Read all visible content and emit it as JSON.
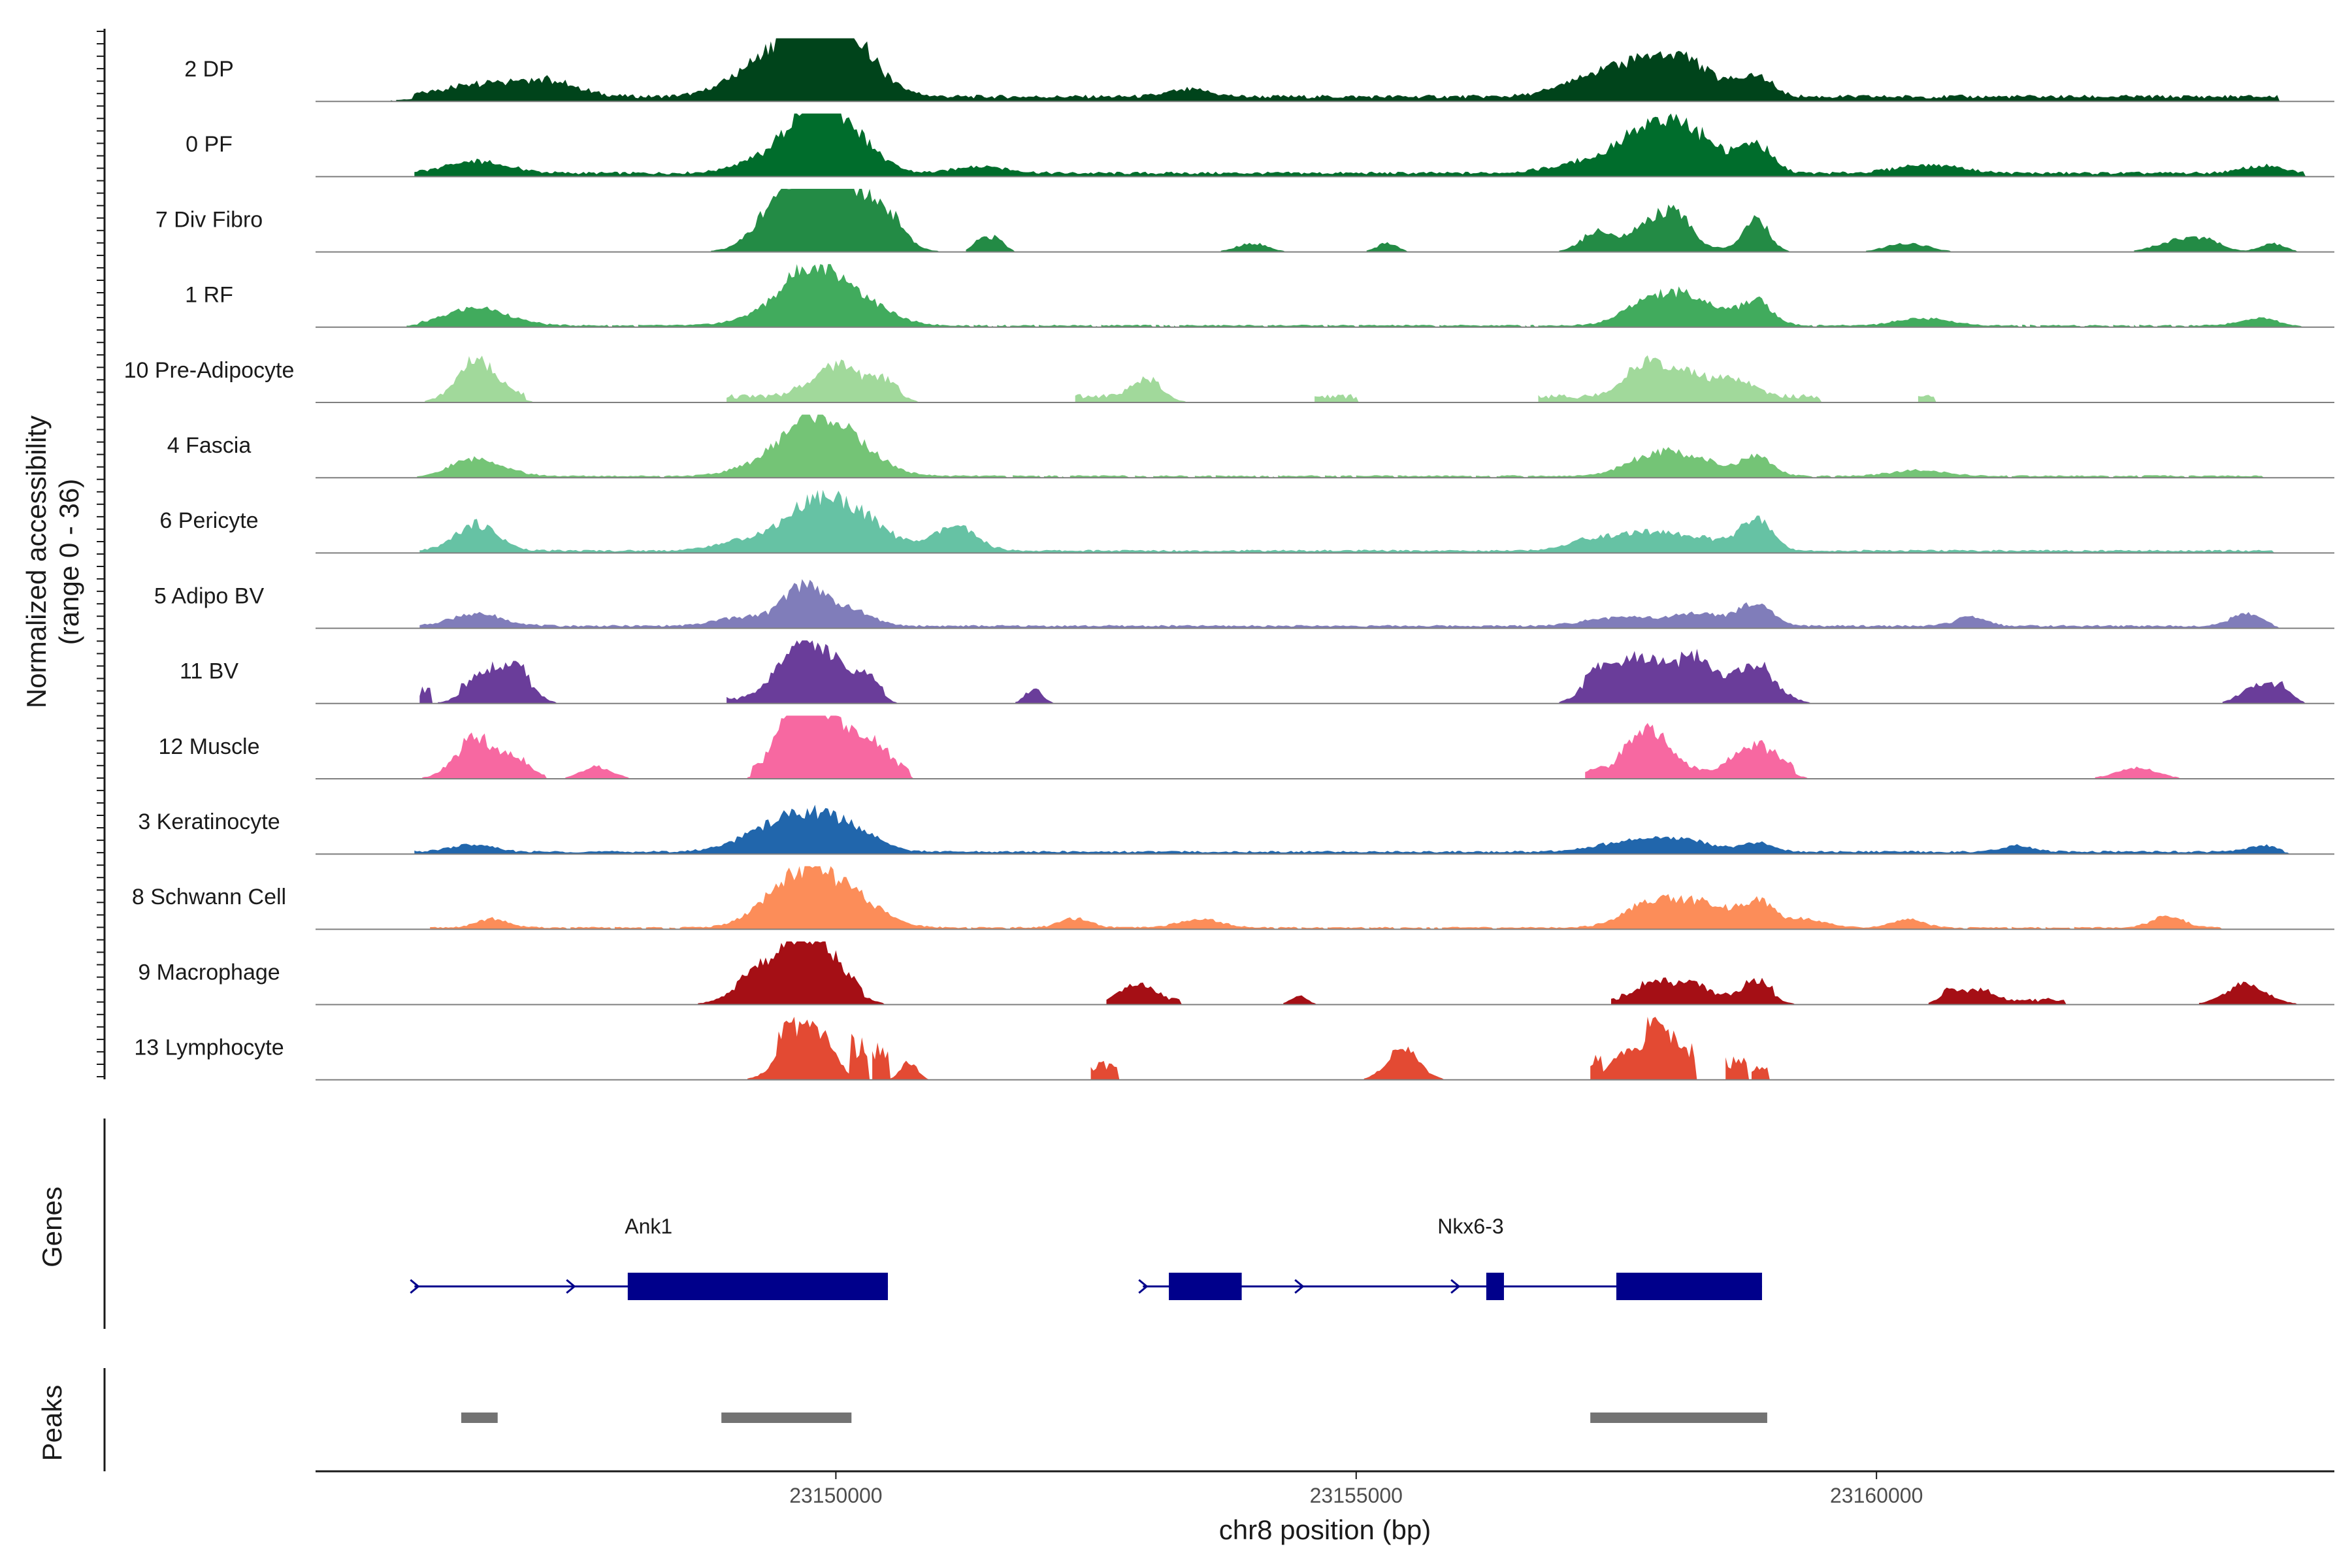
{
  "chart_data": {
    "type": "area",
    "title": "",
    "xlabel": "chr8 position (bp)",
    "ylabel": "Normalized accessibility",
    "ylabel_range": "(range 0 - 36)",
    "xlim": [
      23145000,
      23164400
    ],
    "ylim": [
      0,
      36
    ],
    "x_ticks": [
      23150000,
      23155000,
      23160000
    ],
    "x_tick_labels": [
      "23150000",
      "23155000",
      "23160000"
    ],
    "genes_label": "Genes",
    "peaks_label": "Peaks",
    "series": [
      {
        "name": "2 DP",
        "color": "#00441b",
        "regions": [
          [
            23145950,
            23163850,
            0.08
          ]
        ],
        "peaks": [
          [
            23146750,
            450,
            0.25
          ],
          [
            23147300,
            250,
            0.15
          ],
          [
            23149500,
            300,
            0.4
          ],
          [
            23149800,
            250,
            0.95
          ],
          [
            23150100,
            300,
            0.8
          ],
          [
            23149200,
            300,
            0.3
          ],
          [
            23153400,
            200,
            0.12
          ],
          [
            23157800,
            300,
            0.55
          ],
          [
            23158150,
            200,
            0.35
          ],
          [
            23157250,
            300,
            0.3
          ],
          [
            23158850,
            150,
            0.3
          ],
          [
            23158500,
            250,
            0.2
          ]
        ]
      },
      {
        "name": "0 PF",
        "color": "#006d2c",
        "regions": [
          [
            23145950,
            23164100,
            0.06
          ]
        ],
        "peaks": [
          [
            23146550,
            300,
            0.2
          ],
          [
            23149750,
            200,
            0.85
          ],
          [
            23150100,
            250,
            0.75
          ],
          [
            23149400,
            300,
            0.3
          ],
          [
            23151400,
            250,
            0.12
          ],
          [
            23157800,
            250,
            0.45
          ],
          [
            23158200,
            300,
            0.65
          ],
          [
            23158850,
            150,
            0.45
          ],
          [
            23157400,
            400,
            0.25
          ],
          [
            23160500,
            300,
            0.15
          ],
          [
            23163700,
            200,
            0.12
          ]
        ]
      },
      {
        "name": "7 Div Fibro",
        "color": "#238b45",
        "regions": [
          [
            23149250,
            23150700,
            0.05
          ],
          [
            23157200,
            23158950,
            0.05
          ]
        ],
        "peaks": [
          [
            23149750,
            300,
            1.0
          ],
          [
            23150150,
            300,
            0.7
          ],
          [
            23149450,
            250,
            0.35
          ],
          [
            23150500,
            150,
            0.3
          ],
          [
            23151400,
            80,
            0.2
          ],
          [
            23151550,
            80,
            0.2
          ],
          [
            23154000,
            150,
            0.15
          ],
          [
            23155300,
            100,
            0.15
          ],
          [
            23157300,
            150,
            0.3
          ],
          [
            23157850,
            200,
            0.45
          ],
          [
            23158100,
            150,
            0.4
          ],
          [
            23158850,
            120,
            0.5
          ],
          [
            23160300,
            200,
            0.15
          ],
          [
            23162900,
            200,
            0.2
          ],
          [
            23163200,
            150,
            0.15
          ],
          [
            23163800,
            120,
            0.15
          ]
        ]
      },
      {
        "name": "1 RF",
        "color": "#41ab5d",
        "regions": [
          [
            23146000,
            23163850,
            0.03
          ]
        ],
        "peaks": [
          [
            23146550,
            300,
            0.3
          ],
          [
            23149750,
            250,
            0.75
          ],
          [
            23150150,
            300,
            0.5
          ],
          [
            23149400,
            300,
            0.2
          ],
          [
            23157800,
            250,
            0.3
          ],
          [
            23158200,
            300,
            0.45
          ],
          [
            23158850,
            150,
            0.4
          ],
          [
            23160450,
            250,
            0.12
          ],
          [
            23163700,
            200,
            0.12
          ]
        ]
      },
      {
        "name": "10 Pre-Adipocyte",
        "color": "#a1d99b",
        "regions": [
          [
            23146350,
            23147000,
            0.1
          ],
          [
            23148950,
            23150600,
            0.1
          ],
          [
            23152300,
            23153100,
            0.1
          ],
          [
            23154600,
            23155000,
            0.1
          ],
          [
            23156750,
            23159450,
            0.1
          ],
          [
            23160400,
            23160550,
            0.1
          ]
        ],
        "peaks": [
          [
            23146550,
            200,
            0.6
          ],
          [
            23149900,
            200,
            0.35
          ],
          [
            23150100,
            150,
            0.3
          ],
          [
            23150450,
            150,
            0.3
          ],
          [
            23153000,
            150,
            0.3
          ],
          [
            23157800,
            200,
            0.6
          ],
          [
            23158200,
            150,
            0.3
          ],
          [
            23158600,
            200,
            0.3
          ]
        ]
      },
      {
        "name": "4 Fascia",
        "color": "#74c476",
        "regions": [
          [
            23146250,
            23163700,
            0.03
          ]
        ],
        "peaks": [
          [
            23146550,
            250,
            0.3
          ],
          [
            23149750,
            250,
            0.65
          ],
          [
            23150100,
            300,
            0.55
          ],
          [
            23149400,
            300,
            0.25
          ],
          [
            23157800,
            250,
            0.25
          ],
          [
            23158200,
            300,
            0.3
          ],
          [
            23158850,
            150,
            0.3
          ],
          [
            23160400,
            250,
            0.1
          ]
        ]
      },
      {
        "name": "6 Pericyte",
        "color": "#66c2a4",
        "regions": [
          [
            23146000,
            23163800,
            0.04
          ]
        ],
        "peaks": [
          [
            23146550,
            200,
            0.45
          ],
          [
            23149750,
            250,
            0.65
          ],
          [
            23150100,
            250,
            0.35
          ],
          [
            23150300,
            300,
            0.3
          ],
          [
            23151150,
            200,
            0.4
          ],
          [
            23149200,
            300,
            0.2
          ],
          [
            23157300,
            250,
            0.2
          ],
          [
            23157800,
            250,
            0.25
          ],
          [
            23158850,
            150,
            0.5
          ],
          [
            23158300,
            300,
            0.2
          ]
        ]
      },
      {
        "name": "5 Adipo BV",
        "color": "#807dba",
        "regions": [
          [
            23146000,
            23163800,
            0.04
          ]
        ],
        "peaks": [
          [
            23146550,
            250,
            0.2
          ],
          [
            23149700,
            200,
            0.7
          ],
          [
            23150150,
            200,
            0.25
          ],
          [
            23149100,
            250,
            0.15
          ],
          [
            23158300,
            300,
            0.2
          ],
          [
            23158850,
            150,
            0.35
          ],
          [
            23157500,
            300,
            0.15
          ],
          [
            23163550,
            150,
            0.2
          ],
          [
            23160900,
            150,
            0.15
          ]
        ]
      },
      {
        "name": "11 BV",
        "color": "#6a3d9a",
        "regions": [
          [
            23146000,
            23146100,
            0.2
          ],
          [
            23146400,
            23147050,
            0.15
          ],
          [
            23148950,
            23150450,
            0.08
          ],
          [
            23157200,
            23158950,
            0.12
          ]
        ],
        "peaks": [
          [
            23146650,
            200,
            0.35
          ],
          [
            23146950,
            150,
            0.4
          ],
          [
            23149650,
            200,
            1.0
          ],
          [
            23150000,
            150,
            0.45
          ],
          [
            23150300,
            120,
            0.35
          ],
          [
            23151900,
            80,
            0.25
          ],
          [
            23157300,
            150,
            0.35
          ],
          [
            23157600,
            200,
            0.5
          ],
          [
            23157850,
            150,
            0.35
          ],
          [
            23158250,
            200,
            0.65
          ],
          [
            23158850,
            200,
            0.55
          ],
          [
            23163650,
            150,
            0.3
          ],
          [
            23163900,
            100,
            0.25
          ]
        ]
      },
      {
        "name": "12 Muscle",
        "color": "#f768a1",
        "regions": [
          [
            23146400,
            23147200,
            0.05
          ],
          [
            23149200,
            23150700,
            0.12
          ],
          [
            23157200,
            23159200,
            0.12
          ]
        ],
        "peaks": [
          [
            23146550,
            200,
            0.65
          ],
          [
            23149750,
            200,
            1.0
          ],
          [
            23149550,
            150,
            0.6
          ],
          [
            23150100,
            200,
            0.55
          ],
          [
            23150400,
            150,
            0.3
          ],
          [
            23157800,
            200,
            0.75
          ],
          [
            23158850,
            200,
            0.45
          ],
          [
            23147700,
            150,
            0.2
          ],
          [
            23146950,
            100,
            0.25
          ],
          [
            23162500,
            200,
            0.18
          ]
        ]
      },
      {
        "name": "3 Keratinocyte",
        "color": "#2166ac",
        "regions": [
          [
            23145950,
            23163900,
            0.04
          ]
        ],
        "peaks": [
          [
            23149350,
            300,
            0.35
          ],
          [
            23149750,
            250,
            0.45
          ],
          [
            23150150,
            250,
            0.35
          ],
          [
            23146500,
            200,
            0.12
          ],
          [
            23157600,
            300,
            0.15
          ],
          [
            23158100,
            300,
            0.2
          ],
          [
            23158850,
            150,
            0.15
          ],
          [
            23161350,
            150,
            0.1
          ],
          [
            23163700,
            150,
            0.1
          ]
        ]
      },
      {
        "name": "8 Schwann Cell",
        "color": "#fc8d59",
        "regions": [
          [
            23146100,
            23163300,
            0.03
          ]
        ],
        "peaks": [
          [
            23146700,
            150,
            0.15
          ],
          [
            23149700,
            250,
            0.65
          ],
          [
            23150100,
            300,
            0.55
          ],
          [
            23149400,
            250,
            0.3
          ],
          [
            23152300,
            150,
            0.15
          ],
          [
            23153500,
            200,
            0.15
          ],
          [
            23157800,
            250,
            0.35
          ],
          [
            23158300,
            300,
            0.4
          ],
          [
            23158850,
            150,
            0.4
          ],
          [
            23159300,
            200,
            0.15
          ],
          [
            23160300,
            150,
            0.15
          ],
          [
            23162800,
            150,
            0.2
          ]
        ]
      },
      {
        "name": "9 Macrophage",
        "color": "#a50f15",
        "regions": [
          [
            23149050,
            23150250,
            0.15
          ],
          [
            23152600,
            23153300,
            0.08
          ],
          [
            23157450,
            23159000,
            0.1
          ],
          [
            23160650,
            23161800,
            0.08
          ]
        ],
        "peaks": [
          [
            23149300,
            250,
            0.45
          ],
          [
            23149700,
            200,
            0.85
          ],
          [
            23150000,
            200,
            0.35
          ],
          [
            23152800,
            100,
            0.2
          ],
          [
            23153000,
            100,
            0.2
          ],
          [
            23154450,
            80,
            0.15
          ],
          [
            23157850,
            150,
            0.3
          ],
          [
            23158200,
            150,
            0.3
          ],
          [
            23158850,
            150,
            0.3
          ],
          [
            23160700,
            100,
            0.2
          ],
          [
            23161000,
            100,
            0.18
          ],
          [
            23163550,
            200,
            0.35
          ]
        ]
      },
      {
        "name": "13 Lymphocyte",
        "color": "#e34a33",
        "regions": [
          [
            23149450,
            23149600,
            0.3
          ],
          [
            23150150,
            23150300,
            0.5
          ],
          [
            23150350,
            23150500,
            0.5
          ],
          [
            23152450,
            23152700,
            0.25
          ],
          [
            23157250,
            23157350,
            0.3
          ],
          [
            23157800,
            23158250,
            0.5
          ],
          [
            23158550,
            23158750,
            0.3
          ],
          [
            23158800,
            23158950,
            0.2
          ]
        ],
        "peaks": [
          [
            23149700,
            200,
            0.95
          ],
          [
            23149950,
            80,
            0.2
          ],
          [
            23150700,
            80,
            0.3
          ],
          [
            23155450,
            150,
            0.55
          ],
          [
            23157550,
            120,
            0.4
          ],
          [
            23157850,
            150,
            0.6
          ]
        ]
      }
    ],
    "genes": [
      {
        "name": "Ank1",
        "strand": "+",
        "label_pos": 23148200,
        "start": 23145950,
        "end": 23150500,
        "exons": [
          [
            23148000,
            23150500
          ]
        ]
      },
      {
        "name": "Nkx6-3",
        "strand": "+",
        "label_pos": 23156100,
        "start": 23152950,
        "end": 23158900,
        "exons": [
          [
            23153200,
            23153900
          ],
          [
            23156250,
            23156420
          ],
          [
            23157500,
            23158900
          ]
        ]
      }
    ],
    "peaks_track": [
      [
        23146400,
        23146750
      ],
      [
        23148900,
        23150150
      ],
      [
        23157250,
        23158950
      ]
    ],
    "colors": {
      "gene_blue": "#00008b",
      "peak_gray": "#737373",
      "baseline": "#7f7f7f",
      "axis": "#1a1a1a"
    }
  }
}
